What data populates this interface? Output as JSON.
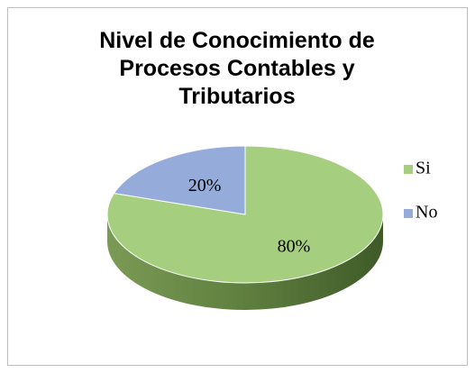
{
  "chart_data": {
    "type": "pie",
    "title": "Nivel de Conocimiento de Procesos Contables y Tributarios",
    "categories": [
      "Si",
      "No"
    ],
    "values": [
      80,
      20
    ],
    "value_labels": [
      "80%",
      "20%"
    ],
    "colors": [
      "#a6ce7f",
      "#95abd9"
    ],
    "legend": "right"
  }
}
